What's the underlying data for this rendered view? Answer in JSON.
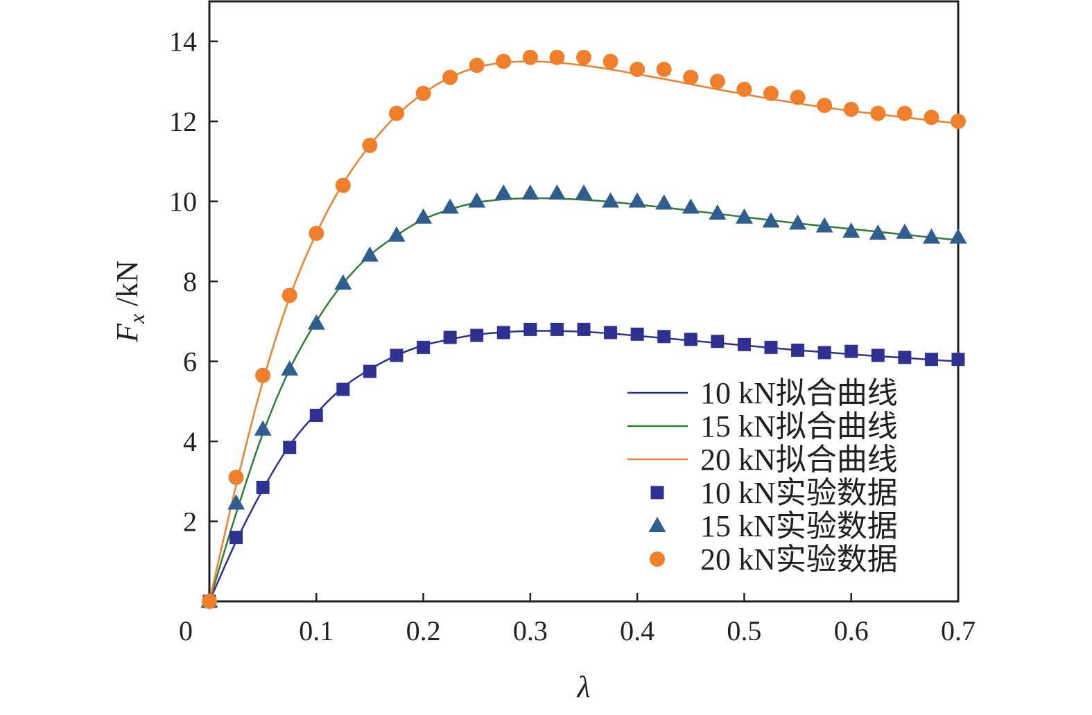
{
  "chart_data": {
    "type": "line",
    "xlabel": "λ",
    "ylabel_main": "F",
    "ylabel_sub": "x",
    "ylabel_unit": " /kN",
    "xlim": [
      0,
      0.7
    ],
    "ylim": [
      0,
      15
    ],
    "x_ticks": [
      0,
      0.1,
      0.2,
      0.3,
      0.4,
      0.5,
      0.6,
      0.7
    ],
    "x_tick_labels": [
      "0",
      "0.1",
      "0.2",
      "0.3",
      "0.4",
      "0.5",
      "0.6",
      "0.7"
    ],
    "y_ticks": [
      2,
      4,
      6,
      8,
      10,
      12,
      14
    ],
    "y_tick_labels": [
      "2",
      "4",
      "6",
      "8",
      "10",
      "12",
      "14"
    ],
    "grid": false,
    "legend_position": "lower-right",
    "fit_series": [
      {
        "name": "10 kN拟合曲线",
        "color": "#2e3191",
        "x": [
          0,
          0.025,
          0.05,
          0.075,
          0.1,
          0.125,
          0.15,
          0.175,
          0.2,
          0.225,
          0.25,
          0.275,
          0.3,
          0.325,
          0.35,
          0.375,
          0.4,
          0.425,
          0.45,
          0.475,
          0.5,
          0.525,
          0.55,
          0.575,
          0.6,
          0.625,
          0.65,
          0.675,
          0.7
        ],
        "y": [
          0,
          1.5,
          2.8,
          3.9,
          4.7,
          5.35,
          5.8,
          6.15,
          6.4,
          6.55,
          6.67,
          6.73,
          6.76,
          6.76,
          6.74,
          6.7,
          6.64,
          6.58,
          6.52,
          6.46,
          6.4,
          6.34,
          6.28,
          6.23,
          6.18,
          6.13,
          6.09,
          6.04,
          6.0
        ]
      },
      {
        "name": "15 kN拟合曲线",
        "color": "#2e7d32",
        "x": [
          0,
          0.025,
          0.05,
          0.075,
          0.1,
          0.125,
          0.15,
          0.175,
          0.2,
          0.225,
          0.25,
          0.275,
          0.3,
          0.325,
          0.35,
          0.375,
          0.4,
          0.425,
          0.45,
          0.475,
          0.5,
          0.525,
          0.55,
          0.575,
          0.6,
          0.625,
          0.65,
          0.675,
          0.7
        ],
        "y": [
          0,
          2.2,
          4.2,
          5.8,
          7.0,
          7.95,
          8.65,
          9.15,
          9.55,
          9.8,
          9.97,
          10.05,
          10.08,
          10.07,
          10.04,
          9.99,
          9.92,
          9.85,
          9.77,
          9.69,
          9.61,
          9.53,
          9.45,
          9.38,
          9.31,
          9.24,
          9.17,
          9.1,
          9.03
        ]
      },
      {
        "name": "20 kN拟合曲线",
        "color": "#f07f2c",
        "x": [
          0,
          0.025,
          0.05,
          0.075,
          0.1,
          0.125,
          0.15,
          0.175,
          0.2,
          0.225,
          0.25,
          0.275,
          0.3,
          0.325,
          0.35,
          0.375,
          0.4,
          0.425,
          0.45,
          0.475,
          0.5,
          0.525,
          0.55,
          0.575,
          0.6,
          0.625,
          0.65,
          0.675,
          0.7
        ],
        "y": [
          0,
          2.9,
          5.5,
          7.6,
          9.2,
          10.45,
          11.4,
          12.15,
          12.7,
          13.1,
          13.35,
          13.47,
          13.5,
          13.47,
          13.4,
          13.3,
          13.18,
          13.06,
          12.93,
          12.8,
          12.68,
          12.56,
          12.45,
          12.35,
          12.26,
          12.18,
          12.1,
          12.02,
          11.95
        ]
      }
    ],
    "data_series": [
      {
        "name": "10 kN实验数据",
        "marker": "square",
        "color": "#2e3191",
        "x": [
          0,
          0.025,
          0.05,
          0.075,
          0.1,
          0.125,
          0.15,
          0.175,
          0.2,
          0.225,
          0.25,
          0.275,
          0.3,
          0.325,
          0.35,
          0.375,
          0.4,
          0.425,
          0.45,
          0.475,
          0.5,
          0.525,
          0.55,
          0.575,
          0.6,
          0.625,
          0.65,
          0.675,
          0.7
        ],
        "y": [
          0,
          1.6,
          2.85,
          3.85,
          4.65,
          5.3,
          5.75,
          6.15,
          6.35,
          6.6,
          6.65,
          6.72,
          6.8,
          6.8,
          6.8,
          6.72,
          6.68,
          6.62,
          6.55,
          6.5,
          6.42,
          6.35,
          6.28,
          6.22,
          6.25,
          6.15,
          6.1,
          6.05,
          6.05
        ]
      },
      {
        "name": "15 kN实验数据",
        "marker": "triangle",
        "color": "#2f5e8e",
        "x": [
          0,
          0.025,
          0.05,
          0.075,
          0.1,
          0.125,
          0.15,
          0.175,
          0.2,
          0.225,
          0.25,
          0.275,
          0.3,
          0.325,
          0.35,
          0.375,
          0.4,
          0.425,
          0.45,
          0.475,
          0.5,
          0.525,
          0.55,
          0.575,
          0.6,
          0.625,
          0.65,
          0.675,
          0.7
        ],
        "y": [
          0,
          2.45,
          4.3,
          5.8,
          6.95,
          7.95,
          8.65,
          9.15,
          9.6,
          9.85,
          10.0,
          10.2,
          10.2,
          10.2,
          10.2,
          10.0,
          10.0,
          9.95,
          9.85,
          9.7,
          9.6,
          9.5,
          9.45,
          9.38,
          9.25,
          9.2,
          9.22,
          9.1,
          9.1
        ]
      },
      {
        "name": "20 kN实验数据",
        "marker": "circle",
        "color": "#f07f2c",
        "x": [
          0,
          0.025,
          0.05,
          0.075,
          0.1,
          0.125,
          0.15,
          0.175,
          0.2,
          0.225,
          0.25,
          0.275,
          0.3,
          0.325,
          0.35,
          0.375,
          0.4,
          0.425,
          0.45,
          0.475,
          0.5,
          0.525,
          0.55,
          0.575,
          0.6,
          0.625,
          0.65,
          0.675,
          0.7
        ],
        "y": [
          0,
          3.1,
          5.65,
          7.65,
          9.2,
          10.4,
          11.4,
          12.2,
          12.7,
          13.1,
          13.4,
          13.5,
          13.6,
          13.6,
          13.6,
          13.5,
          13.3,
          13.3,
          13.1,
          13.0,
          12.8,
          12.7,
          12.6,
          12.4,
          12.3,
          12.2,
          12.2,
          12.1,
          12.0
        ]
      }
    ]
  }
}
